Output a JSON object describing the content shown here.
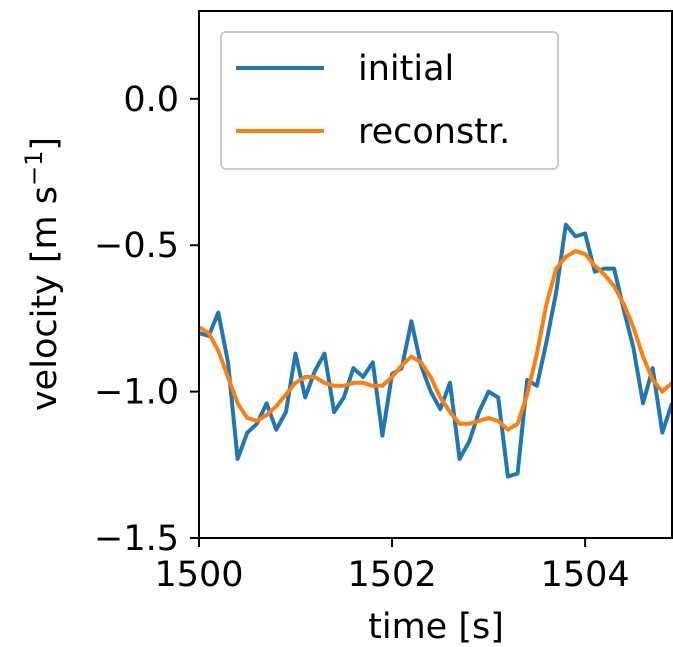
{
  "chart_data": {
    "type": "line",
    "title": "",
    "xlabel": "time [s]",
    "ylabel": "velocity [m s",
    "ylabel_exponent": "−1",
    "ylabel_close": "]",
    "xlim": [
      1500,
      1504.9
    ],
    "ylim": [
      -1.5,
      0.3
    ],
    "xticks": [
      1500,
      1502,
      1504
    ],
    "xtick_labels": [
      "1500",
      "1502",
      "1504"
    ],
    "yticks": [
      0.0,
      -0.5,
      -1.0,
      -1.5
    ],
    "ytick_labels": [
      "0.0",
      "−0.5",
      "−1.0",
      "−1.5"
    ],
    "grid": false,
    "legend": "upper-left",
    "series": [
      {
        "name": "initial",
        "color": "#1f77b4",
        "x": [
          1500.0,
          1500.1,
          1500.2,
          1500.3,
          1500.4,
          1500.5,
          1500.6,
          1500.7,
          1500.8,
          1500.9,
          1501.0,
          1501.1,
          1501.2,
          1501.3,
          1501.4,
          1501.5,
          1501.6,
          1501.7,
          1501.8,
          1501.9,
          1502.0,
          1502.1,
          1502.2,
          1502.3,
          1502.4,
          1502.5,
          1502.6,
          1502.7,
          1502.8,
          1502.9,
          1503.0,
          1503.1,
          1503.2,
          1503.3,
          1503.4,
          1503.5,
          1503.6,
          1503.7,
          1503.8,
          1503.9,
          1504.0,
          1504.1,
          1504.2,
          1504.3,
          1504.4,
          1504.5,
          1504.6,
          1504.7,
          1504.8,
          1504.9
        ],
        "y": [
          -0.8,
          -0.81,
          -0.73,
          -0.9,
          -1.23,
          -1.14,
          -1.11,
          -1.04,
          -1.13,
          -1.07,
          -0.87,
          -1.02,
          -0.93,
          -0.87,
          -1.07,
          -1.02,
          -0.92,
          -0.95,
          -0.9,
          -1.15,
          -0.94,
          -0.92,
          -0.76,
          -0.91,
          -1.0,
          -1.06,
          -0.97,
          -1.23,
          -1.17,
          -1.07,
          -1.0,
          -1.02,
          -1.29,
          -1.28,
          -0.96,
          -0.98,
          -0.83,
          -0.66,
          -0.43,
          -0.47,
          -0.46,
          -0.59,
          -0.58,
          -0.58,
          -0.72,
          -0.85,
          -1.04,
          -0.92,
          -1.14,
          -1.04
        ]
      },
      {
        "name": "reconstr.",
        "color": "#ff7f0e",
        "x": [
          1500.0,
          1500.1,
          1500.2,
          1500.3,
          1500.4,
          1500.5,
          1500.6,
          1500.7,
          1500.8,
          1500.9,
          1501.0,
          1501.1,
          1501.2,
          1501.3,
          1501.4,
          1501.5,
          1501.6,
          1501.7,
          1501.8,
          1501.9,
          1502.0,
          1502.1,
          1502.2,
          1502.3,
          1502.4,
          1502.5,
          1502.6,
          1502.7,
          1502.8,
          1502.9,
          1503.0,
          1503.1,
          1503.2,
          1503.3,
          1503.4,
          1503.5,
          1503.6,
          1503.7,
          1503.8,
          1503.9,
          1504.0,
          1504.1,
          1504.2,
          1504.3,
          1504.4,
          1504.5,
          1504.6,
          1504.7,
          1504.8,
          1504.9
        ],
        "y": [
          -0.78,
          -0.8,
          -0.86,
          -0.95,
          -1.04,
          -1.09,
          -1.1,
          -1.08,
          -1.05,
          -1.01,
          -0.97,
          -0.95,
          -0.95,
          -0.97,
          -0.98,
          -0.98,
          -0.97,
          -0.97,
          -0.98,
          -0.98,
          -0.95,
          -0.91,
          -0.88,
          -0.9,
          -0.95,
          -1.02,
          -1.07,
          -1.11,
          -1.11,
          -1.1,
          -1.09,
          -1.1,
          -1.13,
          -1.11,
          -1.01,
          -0.87,
          -0.7,
          -0.58,
          -0.54,
          -0.52,
          -0.53,
          -0.57,
          -0.6,
          -0.64,
          -0.7,
          -0.78,
          -0.88,
          -0.96,
          -1.0,
          -0.97
        ]
      }
    ]
  }
}
